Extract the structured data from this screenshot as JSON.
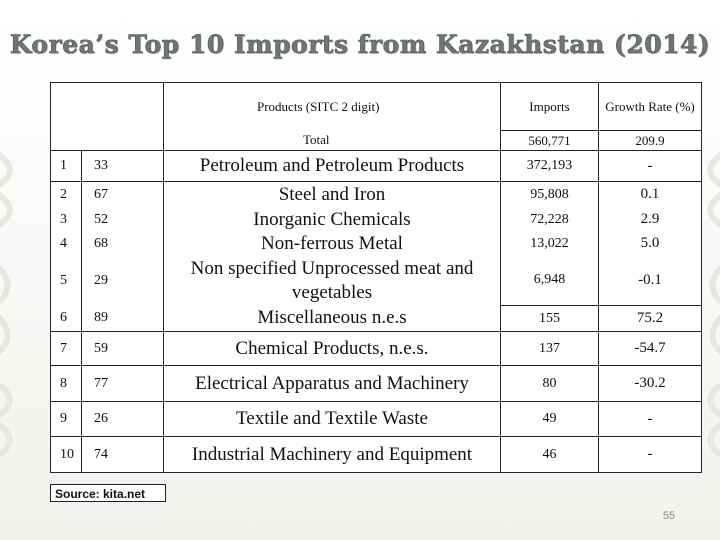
{
  "title": "Korea’s Top 10 Imports from Kazakhstan (2014)",
  "header": {
    "products": "Products (SITC 2 digit)",
    "imports": "Imports",
    "growth": "Growth Rate (%)"
  },
  "total": {
    "label": "Total",
    "imports": "560,771",
    "growth": "209.9"
  },
  "rows": [
    {
      "rank": "1",
      "code": "33",
      "product": "Petroleum and Petroleum Products",
      "imports": "372,193",
      "growth": "-"
    },
    {
      "rank": "2",
      "code": "67",
      "product": "Steel and Iron",
      "imports": "95,808",
      "growth": "0.1"
    },
    {
      "rank": "3",
      "code": "52",
      "product": "Inorganic Chemicals",
      "imports": "72,228",
      "growth": "2.9"
    },
    {
      "rank": "4",
      "code": "68",
      "product": "Non-ferrous Metal",
      "imports": "13,022",
      "growth": "5.0"
    },
    {
      "rank": "5",
      "code": "29",
      "product": "Non specified Unprocessed meat and vegetables",
      "imports": "6,948",
      "growth": "-0.1"
    },
    {
      "rank": "6",
      "code": "89",
      "product": "Miscellaneous n.e.s",
      "imports": "155",
      "growth": "75.2"
    },
    {
      "rank": "7",
      "code": "59",
      "product": "Chemical Products, n.e.s.",
      "imports": "137",
      "growth": "-54.7"
    },
    {
      "rank": "8",
      "code": "77",
      "product": "Electrical Apparatus and Machinery",
      "imports": "80",
      "growth": "-30.2"
    },
    {
      "rank": "9",
      "code": "26",
      "product": "Textile and Textile Waste",
      "imports": "49",
      "growth": "-"
    },
    {
      "rank": "10",
      "code": "74",
      "product": "Industrial Machinery and Equipment",
      "imports": "46",
      "growth": "-"
    }
  ],
  "source": "Source: kita.net",
  "page_number": "55"
}
